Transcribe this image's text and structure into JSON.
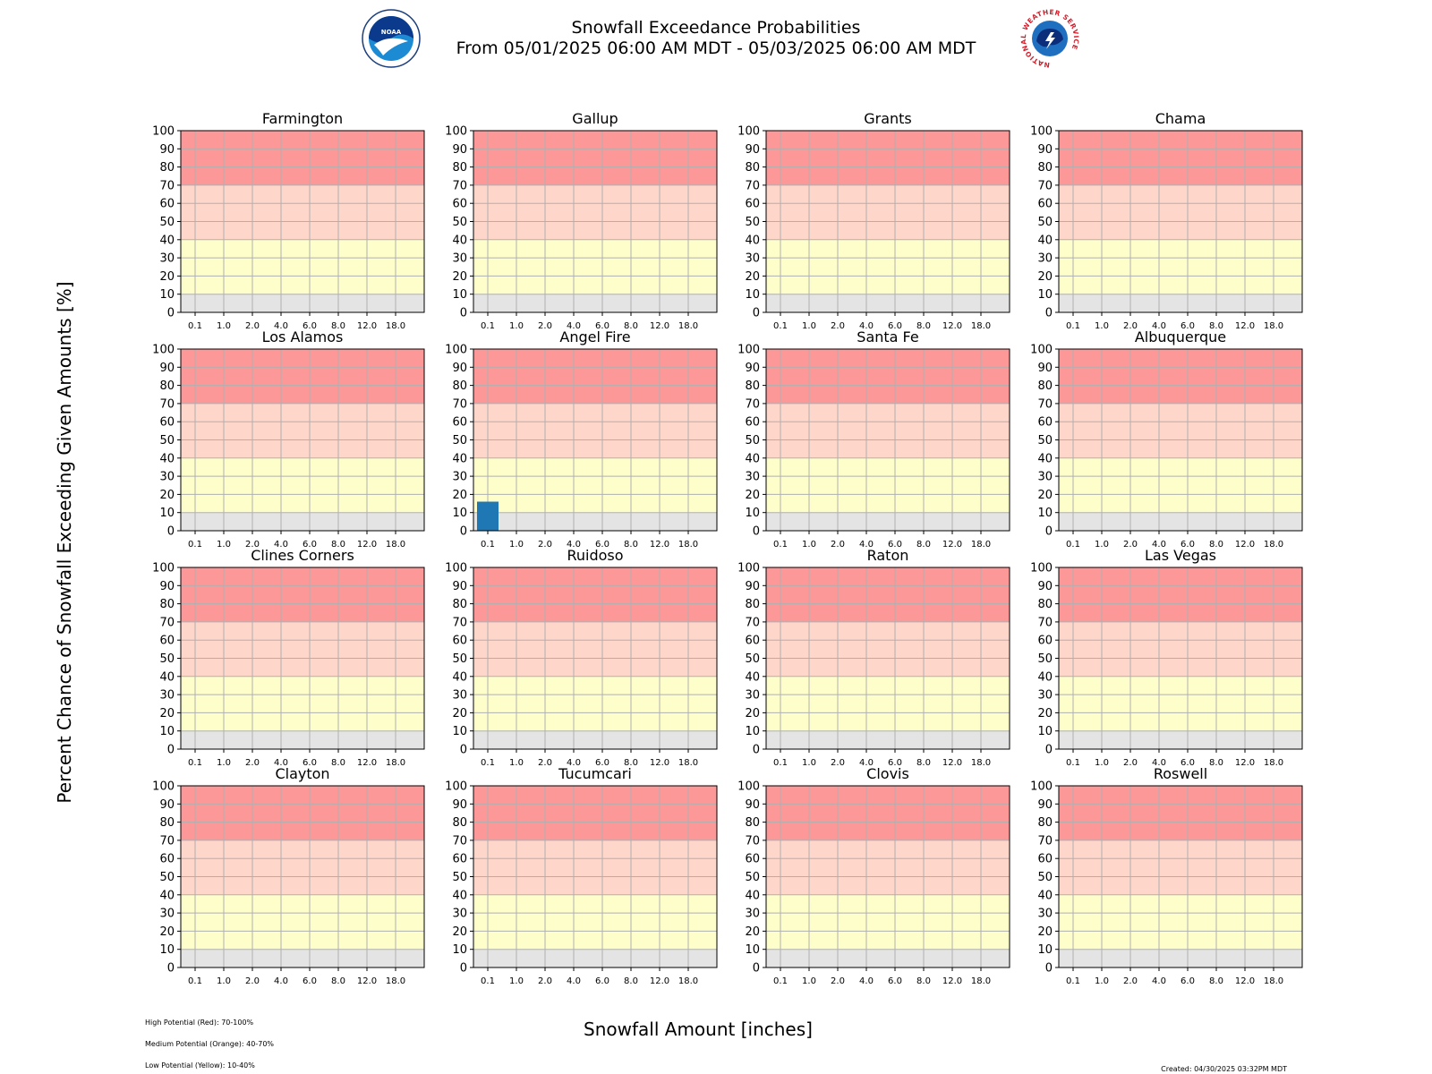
{
  "header": {
    "title_line1": "Snowfall Exceedance Probabilities",
    "title_line2": "From 05/01/2025 06:00 AM MDT - 05/03/2025 06:00 AM MDT",
    "logos": [
      "noaa-logo",
      "nws-logo"
    ],
    "noaa_logo_text": "NOAA",
    "nws_logo_text": "NATIONAL WEATHER SERVICE"
  },
  "axes": {
    "ylabel": "Percent Chance of Snowfall Exceeding Given Amounts [%]",
    "xlabel": "Snowfall Amount [inches]"
  },
  "footer": {
    "legend": [
      "High Potential (Red): 70-100%",
      "Medium Potential (Orange): 40-70%",
      "Low Potential (Yellow): 10-40%"
    ],
    "created": "Created: 04/30/2025 03:32PM MDT"
  },
  "colors": {
    "high": "#fd9898",
    "medium": "#fed6ca",
    "low": "#fefecb",
    "minimal": "#e4e4e4",
    "bar": "#1f77b4",
    "grid": "#b0b0b0"
  },
  "chart_data": {
    "type": "bar",
    "categories": [
      "0.1",
      "1.0",
      "2.0",
      "4.0",
      "6.0",
      "8.0",
      "12.0",
      "18.0"
    ],
    "ylim": [
      0,
      100
    ],
    "yticks": [
      "0",
      "10",
      "20",
      "30",
      "40",
      "50",
      "60",
      "70",
      "80",
      "90",
      "100"
    ],
    "grid": true,
    "bands": [
      {
        "range": [
          70,
          100
        ],
        "color": "#fd9898"
      },
      {
        "range": [
          40,
          70
        ],
        "color": "#fed6ca"
      },
      {
        "range": [
          10,
          40
        ],
        "color": "#fefecb"
      },
      {
        "range": [
          0,
          10
        ],
        "color": "#e4e4e4"
      }
    ],
    "panels": [
      {
        "title": "Farmington",
        "values": [
          0,
          0,
          0,
          0,
          0,
          0,
          0,
          0
        ]
      },
      {
        "title": "Gallup",
        "values": [
          0,
          0,
          0,
          0,
          0,
          0,
          0,
          0
        ]
      },
      {
        "title": "Grants",
        "values": [
          0,
          0,
          0,
          0,
          0,
          0,
          0,
          0
        ]
      },
      {
        "title": "Chama",
        "values": [
          0,
          0,
          0,
          0,
          0,
          0,
          0,
          0
        ]
      },
      {
        "title": "Los Alamos",
        "values": [
          0,
          0,
          0,
          0,
          0,
          0,
          0,
          0
        ]
      },
      {
        "title": "Angel Fire",
        "values": [
          16,
          0,
          0,
          0,
          0,
          0,
          0,
          0
        ]
      },
      {
        "title": "Santa Fe",
        "values": [
          0,
          0,
          0,
          0,
          0,
          0,
          0,
          0
        ]
      },
      {
        "title": "Albuquerque",
        "values": [
          0,
          0,
          0,
          0,
          0,
          0,
          0,
          0
        ]
      },
      {
        "title": "Clines Corners",
        "values": [
          0,
          0,
          0,
          0,
          0,
          0,
          0,
          0
        ]
      },
      {
        "title": "Ruidoso",
        "values": [
          0,
          0,
          0,
          0,
          0,
          0,
          0,
          0
        ]
      },
      {
        "title": "Raton",
        "values": [
          0,
          0,
          0,
          0,
          0,
          0,
          0,
          0
        ]
      },
      {
        "title": "Las Vegas",
        "values": [
          0,
          0,
          0,
          0,
          0,
          0,
          0,
          0
        ]
      },
      {
        "title": "Clayton",
        "values": [
          0,
          0,
          0,
          0,
          0,
          0,
          0,
          0
        ]
      },
      {
        "title": "Tucumcari",
        "values": [
          0,
          0,
          0,
          0,
          0,
          0,
          0,
          0
        ]
      },
      {
        "title": "Clovis",
        "values": [
          0,
          0,
          0,
          0,
          0,
          0,
          0,
          0
        ]
      },
      {
        "title": "Roswell",
        "values": [
          0,
          0,
          0,
          0,
          0,
          0,
          0,
          0
        ]
      }
    ]
  }
}
